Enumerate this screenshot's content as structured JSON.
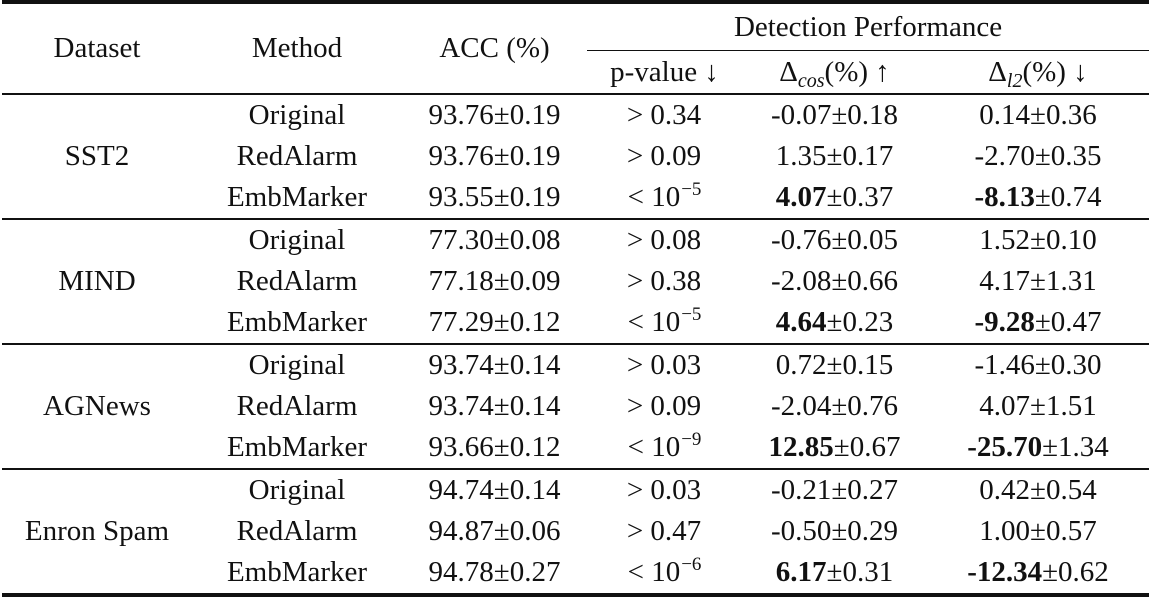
{
  "headers": {
    "dataset": "Dataset",
    "method": "Method",
    "acc": "ACC (%)",
    "detection": "Detection Performance",
    "pvalue": "p-value ↓",
    "dcos": {
      "symbol": "Δ",
      "sub": "cos",
      "unit": "(%)",
      "arrow": "↑"
    },
    "dl2": {
      "symbol": "Δ",
      "sub": "l2",
      "unit": "(%)",
      "arrow": "↓"
    }
  },
  "groups": [
    {
      "dataset": "SST2",
      "rows": [
        {
          "method": "Original",
          "acc": "93.76±0.19",
          "p_op": ">",
          "p_base": "0.34",
          "p_exp": "",
          "dcos_bold": "",
          "dcos_rest": "-0.07±0.18",
          "dl2_bold": "",
          "dl2_rest": "0.14±0.36"
        },
        {
          "method": "RedAlarm",
          "acc": "93.76±0.19",
          "p_op": ">",
          "p_base": "0.09",
          "p_exp": "",
          "dcos_bold": "",
          "dcos_rest": "1.35±0.17",
          "dl2_bold": "",
          "dl2_rest": "-2.70±0.35"
        },
        {
          "method": "EmbMarker",
          "acc": "93.55±0.19",
          "p_op": "<",
          "p_base": "10",
          "p_exp": "−5",
          "dcos_bold": "4.07",
          "dcos_rest": "±0.37",
          "dl2_bold": "-8.13",
          "dl2_rest": "±0.74"
        }
      ]
    },
    {
      "dataset": "MIND",
      "rows": [
        {
          "method": "Original",
          "acc": "77.30±0.08",
          "p_op": ">",
          "p_base": "0.08",
          "p_exp": "",
          "dcos_bold": "",
          "dcos_rest": "-0.76±0.05",
          "dl2_bold": "",
          "dl2_rest": "1.52±0.10"
        },
        {
          "method": "RedAlarm",
          "acc": "77.18±0.09",
          "p_op": ">",
          "p_base": "0.38",
          "p_exp": "",
          "dcos_bold": "",
          "dcos_rest": "-2.08±0.66",
          "dl2_bold": "",
          "dl2_rest": "4.17±1.31"
        },
        {
          "method": "EmbMarker",
          "acc": "77.29±0.12",
          "p_op": "<",
          "p_base": "10",
          "p_exp": "−5",
          "dcos_bold": "4.64",
          "dcos_rest": "±0.23",
          "dl2_bold": "-9.28",
          "dl2_rest": "±0.47"
        }
      ]
    },
    {
      "dataset": "AGNews",
      "rows": [
        {
          "method": "Original",
          "acc": "93.74±0.14",
          "p_op": ">",
          "p_base": "0.03",
          "p_exp": "",
          "dcos_bold": "",
          "dcos_rest": "0.72±0.15",
          "dl2_bold": "",
          "dl2_rest": "-1.46±0.30"
        },
        {
          "method": "RedAlarm",
          "acc": "93.74±0.14",
          "p_op": ">",
          "p_base": "0.09",
          "p_exp": "",
          "dcos_bold": "",
          "dcos_rest": "-2.04±0.76",
          "dl2_bold": "",
          "dl2_rest": "4.07±1.51"
        },
        {
          "method": "EmbMarker",
          "acc": "93.66±0.12",
          "p_op": "<",
          "p_base": "10",
          "p_exp": "−9",
          "dcos_bold": "12.85",
          "dcos_rest": "±0.67",
          "dl2_bold": "-25.70",
          "dl2_rest": "±1.34"
        }
      ]
    },
    {
      "dataset": "Enron Spam",
      "rows": [
        {
          "method": "Original",
          "acc": "94.74±0.14",
          "p_op": ">",
          "p_base": "0.03",
          "p_exp": "",
          "dcos_bold": "",
          "dcos_rest": "-0.21±0.27",
          "dl2_bold": "",
          "dl2_rest": "0.42±0.54"
        },
        {
          "method": "RedAlarm",
          "acc": "94.87±0.06",
          "p_op": ">",
          "p_base": "0.47",
          "p_exp": "",
          "dcos_bold": "",
          "dcos_rest": "-0.50±0.29",
          "dl2_bold": "",
          "dl2_rest": "1.00±0.57"
        },
        {
          "method": "EmbMarker",
          "acc": "94.78±0.27",
          "p_op": "<",
          "p_base": "10",
          "p_exp": "−6",
          "dcos_bold": "6.17",
          "dcos_rest": "±0.31",
          "dl2_bold": "-12.34",
          "dl2_rest": "±0.62"
        }
      ]
    }
  ]
}
